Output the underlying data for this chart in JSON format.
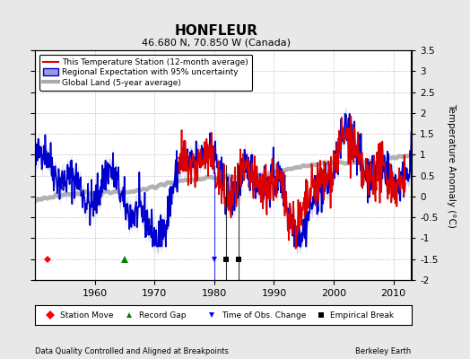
{
  "title": "HONFLEUR",
  "subtitle": "46.680 N, 70.850 W (Canada)",
  "xlabel_left": "Data Quality Controlled and Aligned at Breakpoints",
  "xlabel_right": "Berkeley Earth",
  "ylabel": "Temperature Anomaly (°C)",
  "xlim": [
    1950,
    2013
  ],
  "ylim": [
    -2,
    3.5
  ],
  "yticks": [
    -2,
    -1.5,
    -1,
    -0.5,
    0,
    0.5,
    1,
    1.5,
    2,
    2.5,
    3,
    3.5
  ],
  "xticks": [
    1960,
    1970,
    1980,
    1990,
    2000,
    2010
  ],
  "bg_color": "#e8e8e8",
  "plot_bg_color": "#ffffff",
  "station_color": "#dd0000",
  "regional_color": "#0000cc",
  "regional_fill_color": "#9999dd",
  "global_color": "#aaaaaa",
  "seed": 42,
  "station_start_year": 1974,
  "station_end_year": 2012,
  "marker_gap_x": 1965,
  "marker_obs_x": 1980,
  "marker_break1_x": 1982,
  "marker_break2_x": 1984,
  "marker_y": -1.5
}
